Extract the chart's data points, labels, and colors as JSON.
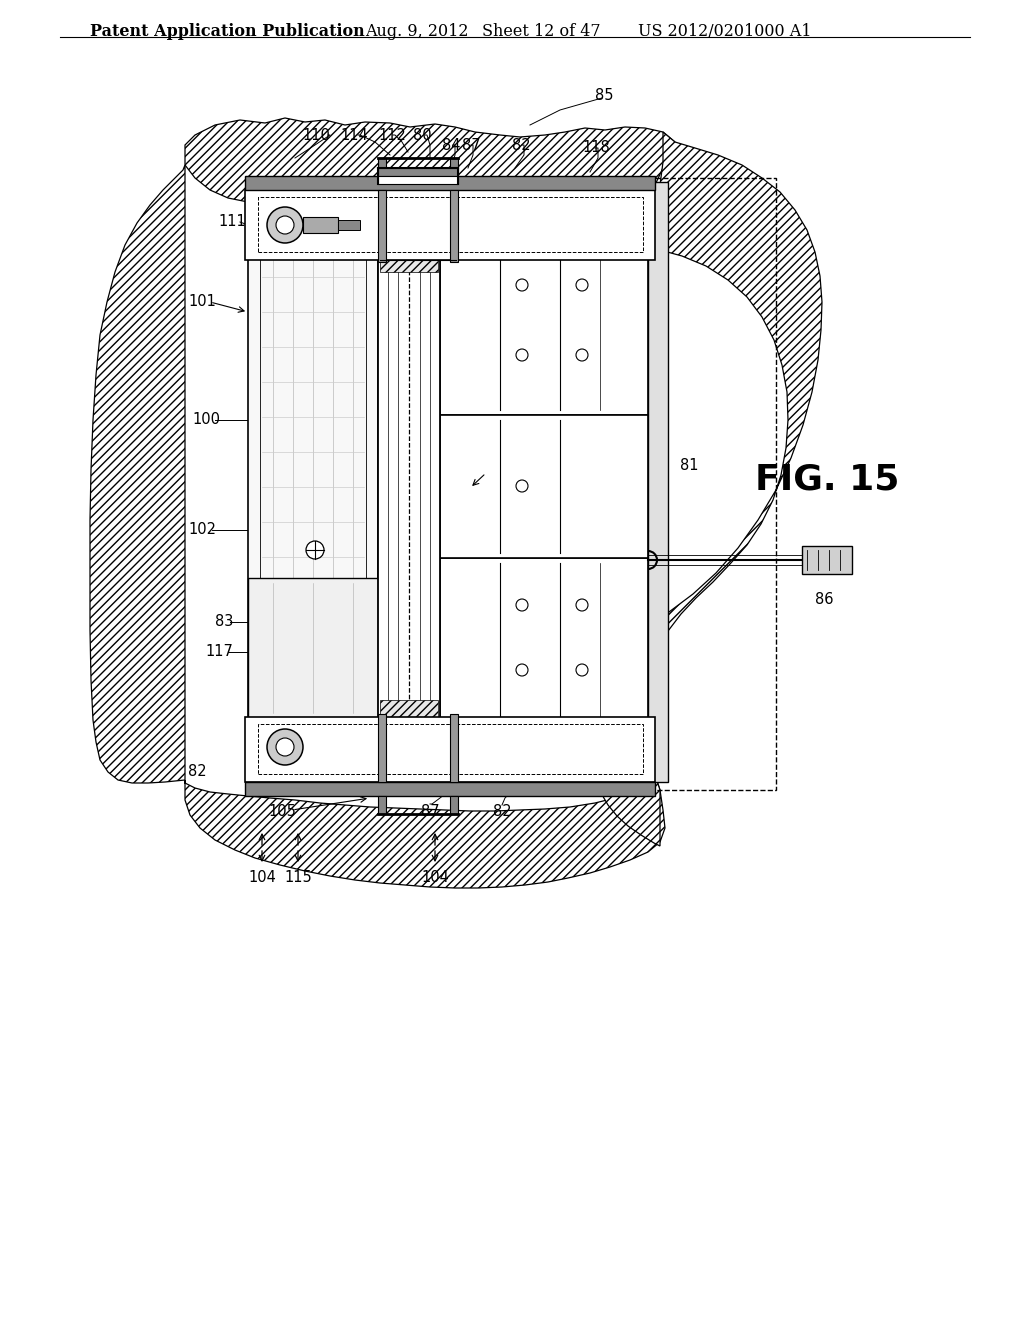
{
  "title_left": "Patent Application Publication",
  "title_date": "Aug. 9, 2012",
  "title_sheet": "Sheet 12 of 47",
  "title_patent": "US 2012/0201000 A1",
  "fig_label": "FIG. 15",
  "bg_color": "#ffffff",
  "header_fontsize": 11.5,
  "fig_label_fontsize": 26,
  "label_fontsize": 10.5
}
